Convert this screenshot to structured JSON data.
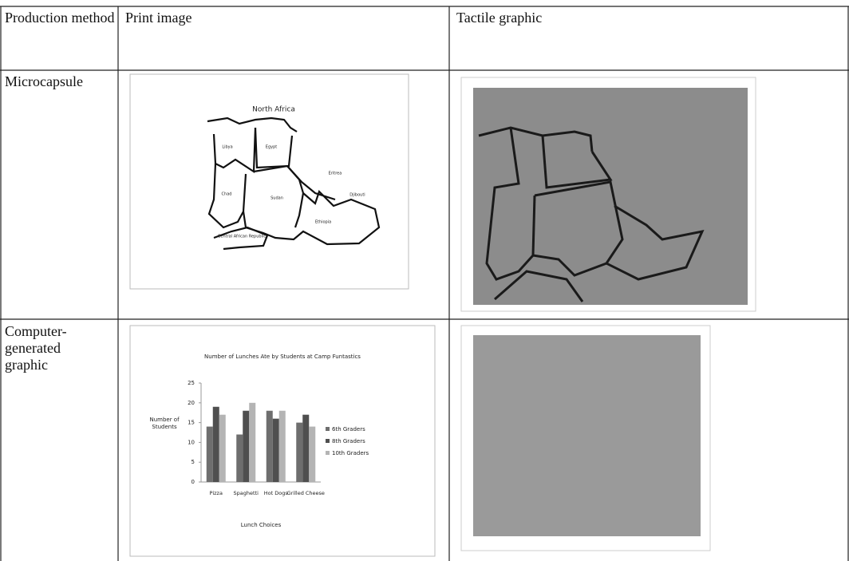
{
  "table": {
    "header": [
      "Production method",
      "Print image",
      "Tactile graphic"
    ],
    "rows": [
      [
        "Microcapsule"
      ],
      [
        "Computer-generated graphic"
      ]
    ]
  },
  "map": {
    "title": "North Africa",
    "labels": [
      "Libya",
      "Egypt",
      "Eritrea",
      "Chad",
      "Sudan",
      "Djibouti",
      "Ethiopia",
      "Central African Republic"
    ]
  },
  "chart_data": {
    "type": "bar",
    "title": "Number of Lunches Ate by Students at Camp Funtastics",
    "y_label": "Number of Students",
    "x_label": "Lunch Choices",
    "categories": [
      "Pizza",
      "Spaghetti",
      "Hot Dogs",
      "Grilled Cheese"
    ],
    "series": [
      {
        "name": "6th Graders",
        "color": "#6e6e6e",
        "values": [
          14,
          12,
          18,
          15
        ]
      },
      {
        "name": "8th Graders",
        "color": "#4f4f4f",
        "values": [
          19,
          18,
          16,
          17
        ]
      },
      {
        "name": "10th Graders",
        "color": "#b4b4b4",
        "values": [
          17,
          20,
          18,
          14
        ]
      }
    ],
    "ylim": [
      0,
      25
    ],
    "yticks": [
      0,
      5,
      10,
      15,
      20,
      25
    ]
  }
}
